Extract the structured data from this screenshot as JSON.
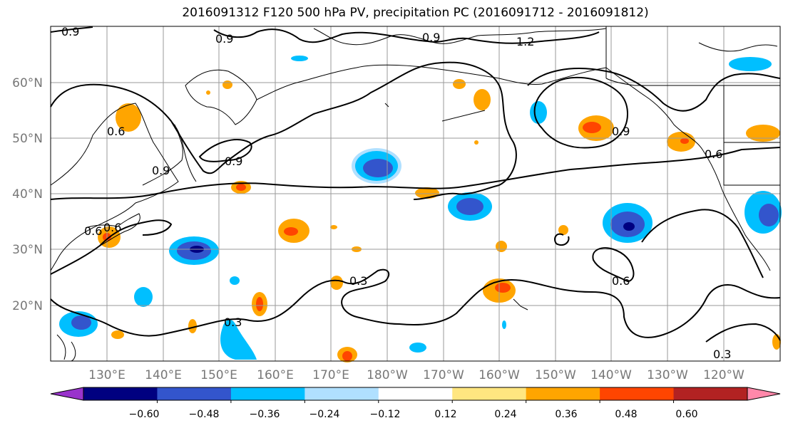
{
  "title": "2016091312 F120 500 hPa PV, precipitation PC (2016091712 - 2016091812)",
  "lat_labels": [
    "60°N",
    "50°N",
    "40°N",
    "30°N",
    "20°N"
  ],
  "lon_labels": [
    "130°E",
    "140°E",
    "150°E",
    "160°E",
    "170°E",
    "180°W",
    "170°W",
    "160°W",
    "150°W",
    "140°W",
    "130°W",
    "120°W"
  ],
  "contour_labels": [
    "0.9",
    "0.9",
    "0.9",
    "1.2",
    "0.9",
    "0.9",
    "0.9",
    "0.6",
    "0.6",
    "0.6",
    "0.3",
    "0.3",
    "0.3",
    "0.6",
    "0.6"
  ],
  "colorbar": {
    "tick_labels": [
      "−0.60",
      "−0.48",
      "−0.36",
      "−0.24",
      "−0.12",
      "0.12",
      "0.24",
      "0.36",
      "0.48",
      "0.60"
    ],
    "colors": [
      "#9933cc",
      "#000080",
      "#3355cc",
      "#00bfff",
      "#b0e0ff",
      "#ffffff",
      "#ffe680",
      "#ffa500",
      "#ff4500",
      "#b22222",
      "#ff88aa"
    ]
  }
}
